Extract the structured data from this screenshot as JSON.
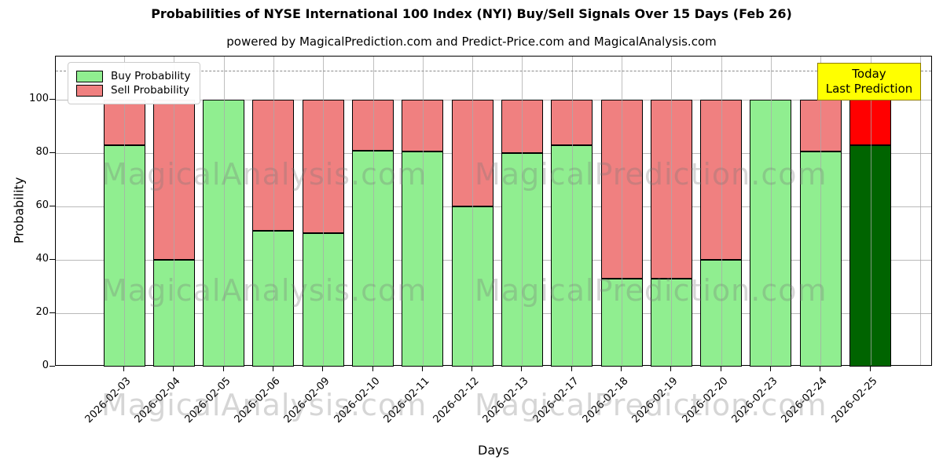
{
  "title": "Probabilities of NYSE International 100 Index (NYI) Buy/Sell Signals Over 15 Days (Feb 26)",
  "subtitle": "powered by MagicalPrediction.com and Predict-Price.com and MagicalAnalysis.com",
  "legend": {
    "items": [
      {
        "label": "Buy Probability",
        "color": "#90EE90"
      },
      {
        "label": "Sell Probability",
        "color": "#F08080"
      }
    ]
  },
  "annotation": {
    "line1": "Today",
    "line2": "Last Prediction",
    "bg_color": "#FFFF00"
  },
  "watermarks": {
    "left_text": "MagicalAnalysis.com",
    "right_text": "MagicalPrediction.com"
  },
  "axes": {
    "xlabel": "Days",
    "ylabel": "Probability",
    "yticks": [
      0,
      20,
      40,
      60,
      80,
      100
    ],
    "ylim": [
      0,
      116.2
    ],
    "dashed_line_y": 111
  },
  "chart_data": {
    "type": "bar",
    "stacked": true,
    "title": "Probabilities of NYSE International 100 Index (NYI) Buy/Sell Signals Over 15 Days (Feb 26)",
    "xlabel": "Days",
    "ylabel": "Probability",
    "ylim": [
      0,
      116.2
    ],
    "grid": true,
    "legend_position": "upper left",
    "categories": [
      "2026-02-03",
      "2026-02-04",
      "2026-02-05",
      "2026-02-06",
      "2026-02-09",
      "2026-02-10",
      "2026-02-11",
      "2026-02-12",
      "2026-02-13",
      "2026-02-17",
      "2026-02-18",
      "2026-02-19",
      "2026-02-20",
      "2026-02-23",
      "2026-02-24",
      "2026-02-25"
    ],
    "series": [
      {
        "name": "Buy Probability",
        "values": [
          83,
          40,
          100,
          51,
          50,
          81,
          80.5,
          60,
          80,
          83,
          33,
          33,
          40,
          100,
          80.5,
          83
        ]
      },
      {
        "name": "Sell Probability",
        "values": [
          17,
          60,
          0,
          49,
          50,
          19,
          19.5,
          40,
          20,
          17,
          67,
          67,
          60,
          0,
          19.5,
          17
        ]
      }
    ],
    "colors": {
      "buy": "#90EE90",
      "sell": "#F08080",
      "last_bar_buy": "#006400",
      "last_bar_sell": "#FF0000",
      "bar_edge": "#000000"
    },
    "last_bar_highlighted": true
  }
}
